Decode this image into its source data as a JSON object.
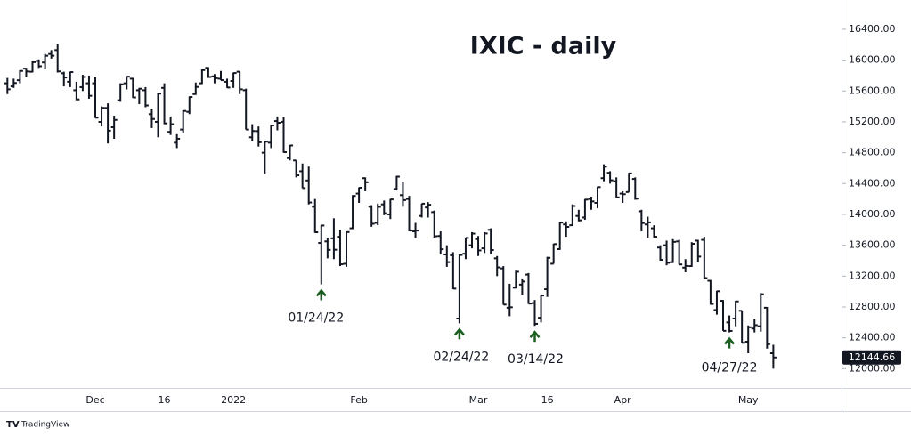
{
  "chart_data": {
    "type": "ohlc",
    "title": "IXIC - daily",
    "branding": "TradingView",
    "categories": [
      null,
      null,
      null,
      null,
      null,
      null,
      null,
      null,
      null,
      null,
      null,
      null,
      null,
      null,
      "Dec",
      null,
      null,
      null,
      null,
      null,
      null,
      null,
      null,
      null,
      null,
      "16",
      null,
      null,
      null,
      null,
      null,
      null,
      null,
      null,
      null,
      null,
      "2022",
      null,
      null,
      null,
      null,
      null,
      null,
      null,
      null,
      null,
      null,
      null,
      null,
      null,
      null,
      null,
      null,
      null,
      null,
      null,
      "Feb",
      null,
      null,
      null,
      null,
      null,
      null,
      null,
      null,
      null,
      null,
      null,
      null,
      null,
      null,
      null,
      null,
      null,
      null,
      "Mar",
      null,
      null,
      null,
      null,
      null,
      null,
      null,
      null,
      null,
      null,
      "16",
      null,
      null,
      null,
      null,
      null,
      null,
      null,
      null,
      null,
      null,
      null,
      "Apr",
      null,
      null,
      null,
      null,
      null,
      null,
      null,
      null,
      null,
      null,
      null,
      null,
      null,
      null,
      null,
      null,
      null,
      null,
      null,
      "May",
      null,
      null,
      null,
      null
    ],
    "open": [
      15700,
      15660,
      15740,
      15890,
      15850,
      15990,
      15970,
      16080,
      16130,
      15830,
      15720,
      15610,
      15650,
      15700,
      15700,
      15200,
      15380,
      15130,
      15480,
      15700,
      15760,
      15610,
      15610,
      15300,
      15200,
      15640,
      15070,
      14930,
      15100,
      15330,
      15560,
      15700,
      15900,
      15790,
      15760,
      15720,
      15730,
      15850,
      15610,
      15000,
      15080,
      14800,
      14930,
      15210,
      15200,
      14730,
      14700,
      14560,
      14440,
      14100,
      13630,
      13650,
      13690,
      13710,
      13360,
      13820,
      14270,
      14470,
      14100,
      13890,
      14130,
      14000,
      14330,
      14250,
      14200,
      13780,
      13980,
      14090,
      14030,
      13720,
      13480,
      13470,
      12650,
      13490,
      13600,
      13680,
      13560,
      13800,
      13430,
      13300,
      12790,
      13050,
      13090,
      13220,
      12850,
      12660,
      13030,
      13360,
      13550,
      13870,
      13860,
      13980,
      13960,
      14200,
      14150,
      14470,
      14540,
      14430,
      14270,
      14290,
      14460,
      14040,
      13870,
      13820,
      13570,
      13600,
      13380,
      13650,
      13310,
      13330,
      13660,
      13670,
      13140,
      12760,
      12880,
      12600,
      12650,
      12750,
      12350,
      12520,
      12550,
      12790,
      12200
    ],
    "high": [
      15770,
      15760,
      15870,
      15900,
      15990,
      16010,
      16080,
      16130,
      16212,
      15850,
      15850,
      15720,
      15810,
      15800,
      15780,
      15400,
      15440,
      15280,
      15700,
      15790,
      15770,
      15640,
      15650,
      15370,
      15580,
      15700,
      15270,
      15040,
      15350,
      15530,
      15710,
      15880,
      15910,
      15820,
      15860,
      15760,
      15840,
      15850,
      15630,
      15170,
      15140,
      14950,
      15160,
      15270,
      15260,
      14900,
      14700,
      14660,
      14620,
      14200,
      13860,
      13700,
      13950,
      13800,
      13780,
      14250,
      14350,
      14480,
      14120,
      14140,
      14180,
      14200,
      14500,
      14420,
      14240,
      13890,
      14140,
      14160,
      14050,
      13780,
      13600,
      13510,
      13480,
      13700,
      13770,
      13720,
      13770,
      13820,
      13460,
      13330,
      13100,
      13270,
      13170,
      13240,
      12890,
      12960,
      13450,
      13620,
      13900,
      13910,
      14130,
      14060,
      14200,
      14230,
      14360,
      14650,
      14560,
      14480,
      14300,
      14540,
      14480,
      14060,
      13970,
      13860,
      13600,
      13660,
      13680,
      13670,
      13420,
      13640,
      13670,
      13710,
      13150,
      13010,
      12890,
      12690,
      12880,
      12750,
      12560,
      12640,
      12980,
      12800,
      12310
    ],
    "low": [
      15560,
      15640,
      15700,
      15780,
      15840,
      15900,
      15890,
      16020,
      15840,
      15660,
      15650,
      15480,
      15600,
      15500,
      15250,
      15140,
      14920,
      14980,
      15460,
      15620,
      15510,
      15430,
      15390,
      15120,
      15000,
      15170,
      15030,
      14860,
      15050,
      15300,
      15550,
      15690,
      15770,
      15700,
      15740,
      15640,
      15640,
      15560,
      15100,
      14950,
      14880,
      14530,
      14860,
      15090,
      14800,
      14700,
      14480,
      14340,
      14130,
      13760,
      13094,
      13430,
      13420,
      13330,
      13320,
      13810,
      14150,
      14300,
      13840,
      13860,
      13990,
      13940,
      14310,
      14100,
      13780,
      13690,
      13960,
      13960,
      13700,
      13480,
      13320,
      13030,
      12588,
      13420,
      13560,
      13460,
      13500,
      13480,
      13200,
      12830,
      12680,
      13040,
      12960,
      12840,
      12555,
      12600,
      12930,
      13360,
      13540,
      13710,
      13850,
      13910,
      13930,
      14060,
      14080,
      14430,
      14400,
      14220,
      14150,
      14290,
      14190,
      13780,
      13700,
      13700,
      13400,
      13340,
      13370,
      13350,
      13250,
      13320,
      13380,
      13170,
      12830,
      12700,
      12490,
      12470,
      12550,
      12330,
      12200,
      12470,
      12480,
      12260,
      12000
    ],
    "close": [
      15622,
      15704,
      15860,
      15853,
      15974,
      15921,
      16057,
      16057,
      15854,
      15775,
      15845,
      15491,
      15782,
      15538,
      15254,
      15381,
      15085,
      15225,
      15687,
      15786,
      15517,
      15630,
      15413,
      15237,
      15566,
      15180,
      15170,
      14981,
      15341,
      15522,
      15653,
      15871,
      15782,
      15767,
      15741,
      15645,
      15833,
      15622,
      15100,
      15081,
      14936,
      14943,
      15153,
      15188,
      14807,
      14894,
      14507,
      14341,
      14155,
      13769,
      13856,
      13540,
      13542,
      13353,
      13771,
      14240,
      14346,
      14417,
      13879,
      14098,
      14015,
      14195,
      14490,
      14186,
      13791,
      13791,
      14139,
      14125,
      13717,
      13548,
      13381,
      13038,
      13474,
      13695,
      13751,
      13533,
      13753,
      13538,
      13313,
      12831,
      12796,
      13256,
      13130,
      12844,
      12581,
      12949,
      13437,
      13615,
      13894,
      13838,
      14109,
      13923,
      14192,
      14169,
      14354,
      14620,
      14443,
      14221,
      14262,
      14532,
      14204,
      13888,
      13897,
      13711,
      13411,
      13372,
      13644,
      13351,
      13332,
      13619,
      13453,
      13175,
      12839,
      13004,
      12490,
      12489,
      12872,
      12335,
      12537,
      12564,
      12965,
      12318,
      12144.66
    ],
    "color": "#131722",
    "annotations": [
      "01/24/22",
      "02/24/22",
      "03/14/22",
      "04/27/22"
    ],
    "annotation_color": "#1b5e20",
    "ylim": [
      11750,
      16780
    ],
    "yticks": [
      {
        "value": 12000,
        "label": "12000.00"
      },
      {
        "value": 12400,
        "label": "12400.00"
      },
      {
        "value": 12800,
        "label": "12800.00"
      },
      {
        "value": 13200,
        "label": "13200.00"
      },
      {
        "value": 13600,
        "label": "13600.00"
      },
      {
        "value": 14000,
        "label": "14000.00"
      },
      {
        "value": 14400,
        "label": "14400.00"
      },
      {
        "value": 14800,
        "label": "14800.00"
      },
      {
        "value": 15200,
        "label": "15200.00"
      },
      {
        "value": 15600,
        "label": "15600.00"
      },
      {
        "value": 16000,
        "label": "16000.00"
      },
      {
        "value": 16400,
        "label": "16400.00"
      }
    ]
  }
}
